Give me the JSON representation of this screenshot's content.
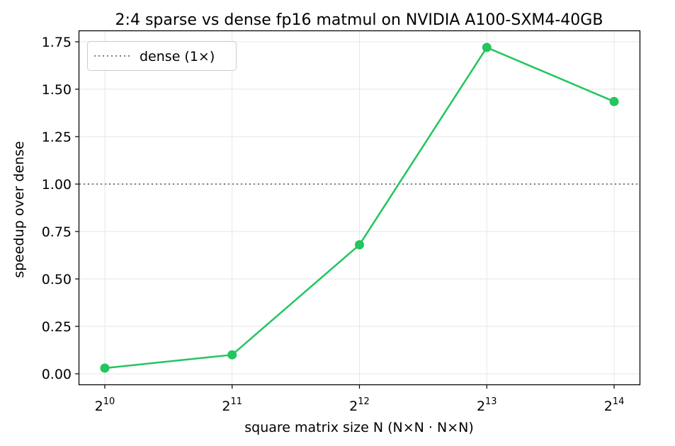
{
  "chart_data": {
    "type": "line",
    "title": "2:4 sparse vs dense fp16 matmul on NVIDIA A100-SXM4-40GB",
    "xlabel": "square matrix size N (N×N · N×N)",
    "ylabel": "speedup over dense",
    "x_scale": "log2",
    "x": [
      1024,
      2048,
      4096,
      8192,
      16384
    ],
    "x_tick_labels": [
      {
        "base": "2",
        "exp": "10"
      },
      {
        "base": "2",
        "exp": "11"
      },
      {
        "base": "2",
        "exp": "12"
      },
      {
        "base": "2",
        "exp": "13"
      },
      {
        "base": "2",
        "exp": "14"
      }
    ],
    "y_ticks": [
      "0.00",
      "0.25",
      "0.50",
      "0.75",
      "1.00",
      "1.25",
      "1.50",
      "1.75"
    ],
    "ylim": [
      -0.056,
      1.806
    ],
    "grid": true,
    "series": [
      {
        "values": [
          0.03,
          0.1,
          0.68,
          1.72,
          1.435
        ],
        "color": "#22c55e"
      }
    ],
    "reference_line": {
      "y": 1.0,
      "label": "dense (1×)",
      "color": "#808080",
      "style": "dotted"
    },
    "legend": {
      "position": "top-left",
      "entries": [
        "dense (1×)"
      ]
    }
  }
}
